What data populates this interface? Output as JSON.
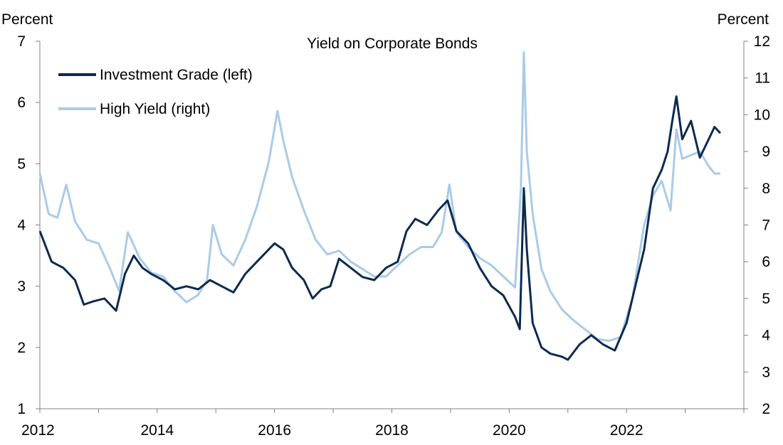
{
  "chart_data": {
    "type": "line",
    "title": "Yield on Corporate Bonds",
    "left_axis_label": "Percent",
    "right_axis_label": "Percent",
    "x_ticks": [
      2012,
      2014,
      2016,
      2018,
      2020,
      2022
    ],
    "x_range": [
      2012,
      2024
    ],
    "left_ylim": [
      1,
      7
    ],
    "left_ticks": [
      1,
      2,
      3,
      4,
      5,
      6,
      7
    ],
    "right_ylim": [
      2,
      12
    ],
    "right_ticks": [
      2,
      3,
      4,
      5,
      6,
      7,
      8,
      9,
      10,
      11,
      12
    ],
    "grid": false,
    "legend_position": "top-left",
    "series": [
      {
        "name": "Investment Grade (left)",
        "axis": "left",
        "color": "#0d2a4f",
        "x": [
          2012.0,
          2012.2,
          2012.4,
          2012.6,
          2012.75,
          2012.9,
          2013.1,
          2013.3,
          2013.45,
          2013.6,
          2013.75,
          2013.9,
          2014.1,
          2014.3,
          2014.5,
          2014.7,
          2014.9,
          2015.1,
          2015.3,
          2015.5,
          2015.7,
          2015.85,
          2016.0,
          2016.15,
          2016.3,
          2016.5,
          2016.65,
          2016.8,
          2016.95,
          2017.1,
          2017.3,
          2017.5,
          2017.7,
          2017.9,
          2018.1,
          2018.25,
          2018.4,
          2018.6,
          2018.8,
          2018.95,
          2019.1,
          2019.3,
          2019.5,
          2019.7,
          2019.9,
          2020.1,
          2020.18,
          2020.25,
          2020.3,
          2020.4,
          2020.55,
          2020.7,
          2020.9,
          2021.0,
          2021.2,
          2021.4,
          2021.6,
          2021.8,
          2022.0,
          2022.15,
          2022.3,
          2022.45,
          2022.6,
          2022.7,
          2022.78,
          2022.85,
          2022.95,
          2023.1,
          2023.25,
          2023.4,
          2023.5,
          2023.6
        ],
        "y": [
          3.9,
          3.4,
          3.3,
          3.1,
          2.7,
          2.75,
          2.8,
          2.6,
          3.2,
          3.5,
          3.3,
          3.2,
          3.1,
          2.95,
          3.0,
          2.95,
          3.1,
          3.0,
          2.9,
          3.2,
          3.4,
          3.55,
          3.7,
          3.6,
          3.3,
          3.1,
          2.8,
          2.95,
          3.0,
          3.45,
          3.3,
          3.15,
          3.1,
          3.3,
          3.4,
          3.9,
          4.1,
          4.0,
          4.25,
          4.4,
          3.9,
          3.7,
          3.3,
          3.0,
          2.85,
          2.5,
          2.3,
          4.6,
          3.6,
          2.4,
          2.0,
          1.9,
          1.85,
          1.8,
          2.05,
          2.2,
          2.05,
          1.95,
          2.4,
          3.0,
          3.6,
          4.6,
          4.9,
          5.2,
          5.7,
          6.1,
          5.4,
          5.7,
          5.1,
          5.4,
          5.6,
          5.5
        ]
      },
      {
        "name": "High Yield (right)",
        "axis": "right",
        "color": "#a9cbe8",
        "x": [
          2012.0,
          2012.15,
          2012.3,
          2012.45,
          2012.6,
          2012.8,
          2013.0,
          2013.2,
          2013.35,
          2013.5,
          2013.7,
          2013.9,
          2014.1,
          2014.3,
          2014.5,
          2014.7,
          2014.85,
          2014.95,
          2015.1,
          2015.3,
          2015.5,
          2015.7,
          2015.9,
          2016.05,
          2016.15,
          2016.3,
          2016.5,
          2016.7,
          2016.9,
          2017.1,
          2017.3,
          2017.5,
          2017.7,
          2017.9,
          2018.1,
          2018.3,
          2018.5,
          2018.7,
          2018.85,
          2018.98,
          2019.1,
          2019.3,
          2019.5,
          2019.7,
          2019.9,
          2020.1,
          2020.2,
          2020.25,
          2020.3,
          2020.4,
          2020.55,
          2020.7,
          2020.9,
          2021.1,
          2021.3,
          2021.5,
          2021.7,
          2021.9,
          2022.1,
          2022.3,
          2022.45,
          2022.6,
          2022.75,
          2022.85,
          2022.95,
          2023.1,
          2023.25,
          2023.4,
          2023.5,
          2023.6
        ],
        "y": [
          8.4,
          7.3,
          7.2,
          8.1,
          7.1,
          6.6,
          6.5,
          5.8,
          5.2,
          6.8,
          6.1,
          5.7,
          5.6,
          5.2,
          4.9,
          5.1,
          5.5,
          7.0,
          6.2,
          5.9,
          6.6,
          7.5,
          8.7,
          10.1,
          9.3,
          8.3,
          7.4,
          6.6,
          6.2,
          6.3,
          6.0,
          5.8,
          5.6,
          5.6,
          5.9,
          6.2,
          6.4,
          6.4,
          6.8,
          8.1,
          6.8,
          6.4,
          6.1,
          5.9,
          5.6,
          5.3,
          8.0,
          11.7,
          9.0,
          7.3,
          5.8,
          5.2,
          4.7,
          4.4,
          4.15,
          3.9,
          3.85,
          3.95,
          5.0,
          7.0,
          7.8,
          8.2,
          7.4,
          9.6,
          8.8,
          8.9,
          9.0,
          8.6,
          8.4,
          8.4
        ]
      }
    ]
  }
}
